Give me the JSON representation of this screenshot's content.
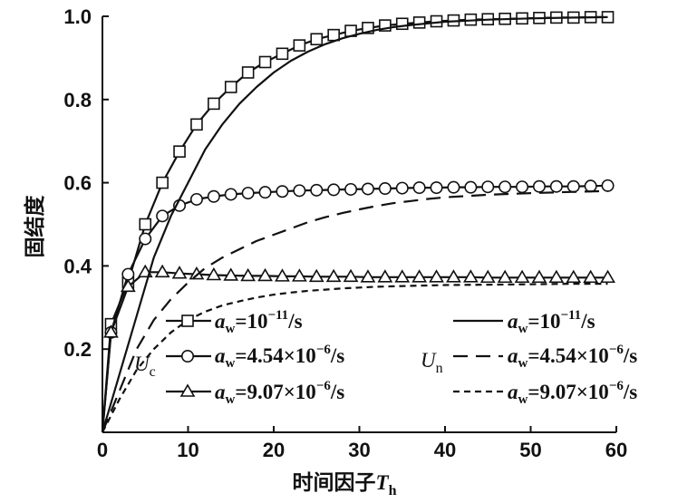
{
  "chart_data": {
    "type": "line",
    "xlabel": "时间因子",
    "xlabel_symbol": "T",
    "xlabel_symbol_sub": "h",
    "ylabel": "固结度",
    "xlim": [
      0,
      60
    ],
    "ylim": [
      0,
      1.0
    ],
    "xticks": [
      "0",
      "10",
      "20",
      "30",
      "40",
      "50",
      "60"
    ],
    "yticks": [
      "0.2",
      "0.4",
      "0.6",
      "0.8",
      "1.0"
    ],
    "grid": false,
    "legend_position": "bottom",
    "legend": {
      "uc_symbol": "U",
      "uc_sub": "c",
      "un_symbol": "U",
      "un_sub": "n",
      "aw_symbol": "a",
      "aw_sub": "w",
      "entries": [
        {
          "value": "=10",
          "exp": "−11",
          "unit": "/s"
        },
        {
          "value": "=4.54×10",
          "exp": "−6",
          "unit": "/s"
        },
        {
          "value": "=9.07×10",
          "exp": "−6",
          "unit": "/s"
        }
      ]
    },
    "series": [
      {
        "group": "Uc",
        "marker": "square",
        "style": "solid",
        "x": [
          0,
          1,
          3,
          5,
          7,
          9,
          11,
          13,
          15,
          17,
          19,
          21,
          23,
          25,
          27,
          29,
          31,
          33,
          35,
          37,
          39,
          41,
          43,
          45,
          47,
          49,
          51,
          53,
          55,
          57,
          59
        ],
        "y": [
          0.0,
          0.26,
          0.36,
          0.5,
          0.6,
          0.675,
          0.74,
          0.79,
          0.83,
          0.865,
          0.89,
          0.91,
          0.93,
          0.945,
          0.955,
          0.965,
          0.972,
          0.978,
          0.982,
          0.985,
          0.988,
          0.99,
          0.992,
          0.993,
          0.994,
          0.995,
          0.996,
          0.997,
          0.997,
          0.998,
          0.998
        ]
      },
      {
        "group": "Uc",
        "marker": "circle",
        "style": "solid",
        "x": [
          0,
          1,
          3,
          5,
          7,
          9,
          11,
          13,
          15,
          17,
          19,
          21,
          23,
          25,
          27,
          29,
          31,
          33,
          35,
          37,
          39,
          41,
          43,
          45,
          47,
          49,
          51,
          53,
          55,
          57,
          59
        ],
        "y": [
          0.0,
          0.24,
          0.38,
          0.465,
          0.52,
          0.545,
          0.56,
          0.567,
          0.572,
          0.575,
          0.577,
          0.579,
          0.581,
          0.582,
          0.583,
          0.584,
          0.585,
          0.586,
          0.587,
          0.588,
          0.588,
          0.589,
          0.589,
          0.59,
          0.59,
          0.59,
          0.591,
          0.591,
          0.591,
          0.592,
          0.593
        ]
      },
      {
        "group": "Uc",
        "marker": "triangle",
        "style": "solid",
        "x": [
          0,
          1,
          3,
          5,
          7,
          9,
          11,
          13,
          15,
          17,
          19,
          21,
          23,
          25,
          27,
          29,
          31,
          33,
          35,
          37,
          39,
          41,
          43,
          45,
          47,
          49,
          51,
          53,
          55,
          57,
          59
        ],
        "y": [
          0.0,
          0.24,
          0.35,
          0.385,
          0.385,
          0.382,
          0.38,
          0.378,
          0.377,
          0.376,
          0.376,
          0.375,
          0.375,
          0.374,
          0.374,
          0.374,
          0.373,
          0.373,
          0.373,
          0.373,
          0.373,
          0.373,
          0.373,
          0.372,
          0.372,
          0.372,
          0.372,
          0.372,
          0.372,
          0.372,
          0.372
        ]
      },
      {
        "group": "Un",
        "marker": "none",
        "style": "solid",
        "x": [
          0,
          2,
          4,
          6,
          8,
          10,
          12,
          14,
          16,
          18,
          20,
          22,
          24,
          26,
          28,
          30,
          32,
          34,
          36,
          38,
          40,
          45,
          50,
          55,
          59
        ],
        "y": [
          0.0,
          0.14,
          0.28,
          0.42,
          0.52,
          0.6,
          0.68,
          0.74,
          0.79,
          0.83,
          0.865,
          0.893,
          0.915,
          0.933,
          0.947,
          0.958,
          0.967,
          0.974,
          0.979,
          0.983,
          0.987,
          0.992,
          0.995,
          0.997,
          0.998
        ]
      },
      {
        "group": "Un",
        "marker": "none",
        "style": "longdash",
        "x": [
          0,
          2,
          4,
          6,
          8,
          10,
          12,
          14,
          16,
          18,
          20,
          22,
          24,
          26,
          28,
          30,
          32,
          34,
          36,
          38,
          40,
          45,
          50,
          55,
          59
        ],
        "y": [
          0.0,
          0.1,
          0.2,
          0.27,
          0.32,
          0.36,
          0.395,
          0.42,
          0.44,
          0.46,
          0.475,
          0.49,
          0.505,
          0.517,
          0.527,
          0.536,
          0.544,
          0.551,
          0.556,
          0.561,
          0.565,
          0.571,
          0.575,
          0.578,
          0.58
        ]
      },
      {
        "group": "Un",
        "marker": "none",
        "style": "shortdash",
        "x": [
          0,
          2,
          4,
          6,
          8,
          10,
          12,
          14,
          16,
          18,
          20,
          22,
          24,
          26,
          28,
          30,
          32,
          34,
          36,
          38,
          40,
          45,
          50,
          55,
          59
        ],
        "y": [
          0.0,
          0.08,
          0.15,
          0.2,
          0.24,
          0.27,
          0.29,
          0.305,
          0.315,
          0.324,
          0.331,
          0.336,
          0.34,
          0.343,
          0.346,
          0.348,
          0.35,
          0.351,
          0.352,
          0.353,
          0.354,
          0.355,
          0.356,
          0.357,
          0.357
        ]
      }
    ]
  }
}
